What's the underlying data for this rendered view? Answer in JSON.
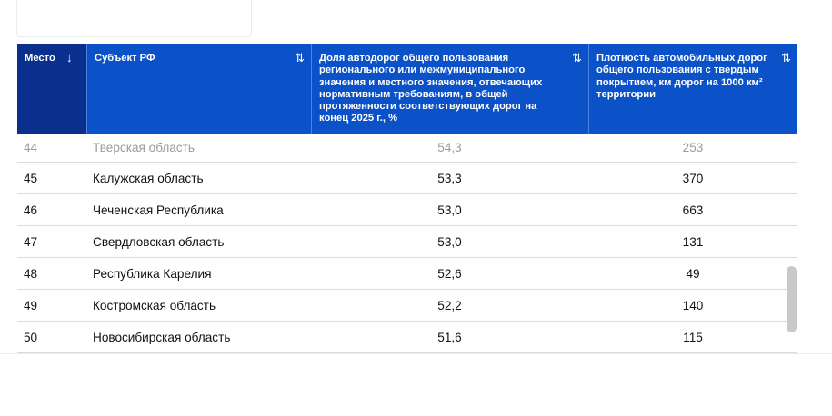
{
  "table": {
    "columns": {
      "place": "Место",
      "subject": "Субъект РФ",
      "share": "Доля автодорог общего пользования регионального или межмуниципального значения и местного значения, отвечающих нормативным требованиям, в общей протяженности соответствующих дорог на конец 2025 г., %",
      "density": "Плотность автомобильных дорог общего пользования с твердым покрытием, км дорог на 1000 км² территории"
    },
    "sort_icons": {
      "place": "↓",
      "subject": "⇅",
      "share": "⇅",
      "density": "⇅"
    },
    "rows": [
      {
        "place": "44",
        "subject": "Тверская область",
        "share": "54,3",
        "density": "253"
      },
      {
        "place": "45",
        "subject": "Калужская область",
        "share": "53,3",
        "density": "370"
      },
      {
        "place": "46",
        "subject": "Чеченская Республика",
        "share": "53,0",
        "density": "663"
      },
      {
        "place": "47",
        "subject": "Свердловская область",
        "share": "53,0",
        "density": "131"
      },
      {
        "place": "48",
        "subject": "Республика Карелия",
        "share": "52,6",
        "density": "49"
      },
      {
        "place": "49",
        "subject": "Костромская область",
        "share": "52,2",
        "density": "140"
      },
      {
        "place": "50",
        "subject": "Новосибирская область",
        "share": "51,6",
        "density": "115"
      }
    ]
  },
  "colors": {
    "header_sorted": "#0a2f8c",
    "header": "#0b52c9",
    "scrollbar": "#c9c9c9"
  }
}
